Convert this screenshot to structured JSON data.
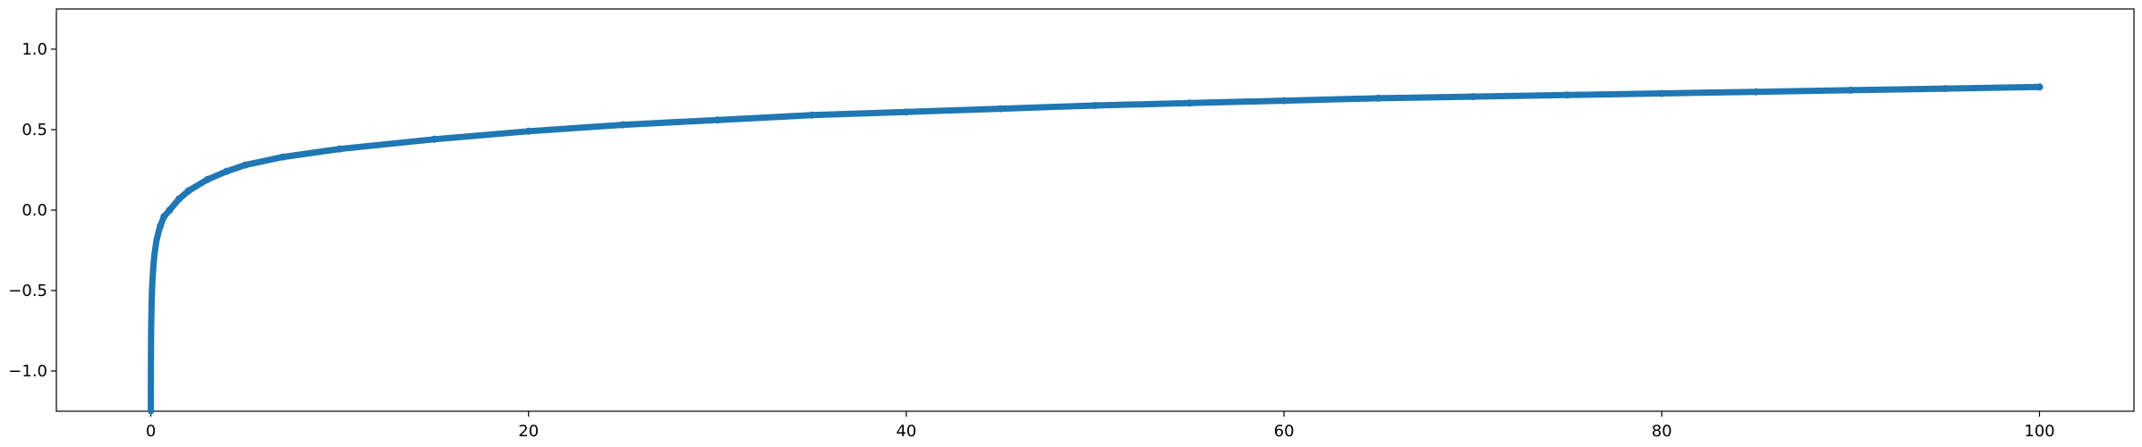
{
  "chart_data": {
    "type": "line",
    "title": "",
    "xlabel": "",
    "ylabel": "",
    "xlim": [
      -5,
      105
    ],
    "ylim": [
      -1.25,
      1.25
    ],
    "x_ticks": [
      0,
      20,
      40,
      60,
      80,
      100
    ],
    "x_tick_labels": [
      "0",
      "20",
      "40",
      "60",
      "80",
      "100"
    ],
    "y_ticks": [
      -1.0,
      -0.5,
      0.0,
      0.5,
      1.0
    ],
    "y_tick_labels": [
      "−1.0",
      "−0.5",
      "0.0",
      "0.5",
      "1.0"
    ],
    "grid": false,
    "legend": "none",
    "series": [
      {
        "color": "#1f77b4",
        "marker": "dot",
        "description_of_data": "dense sampled curve y = 0.25*log(x)-0.385 approx, 0<x<=100",
        "x": [
          0.002,
          0.004,
          0.007,
          0.01,
          0.015,
          0.02,
          0.03,
          0.04,
          0.05,
          0.07,
          0.1,
          0.15,
          0.2,
          0.3,
          0.4,
          0.5,
          0.7,
          1,
          1.5,
          2,
          3,
          4,
          5,
          7,
          10,
          15,
          20,
          25,
          30,
          35,
          40,
          45,
          50,
          55,
          60,
          65,
          70,
          75,
          80,
          85,
          90,
          95,
          100
        ],
        "y": [
          -1.25,
          -1.03,
          -0.92,
          -0.85,
          -0.78,
          -0.73,
          -0.66,
          -0.6,
          -0.55,
          -0.48,
          -0.41,
          -0.33,
          -0.27,
          -0.19,
          -0.14,
          -0.1,
          -0.04,
          0.0,
          0.07,
          0.12,
          0.19,
          0.24,
          0.28,
          0.33,
          0.38,
          0.44,
          0.49,
          0.53,
          0.56,
          0.59,
          0.61,
          0.63,
          0.65,
          0.665,
          0.68,
          0.695,
          0.705,
          0.715,
          0.725,
          0.735,
          0.745,
          0.755,
          0.765
        ]
      }
    ]
  }
}
